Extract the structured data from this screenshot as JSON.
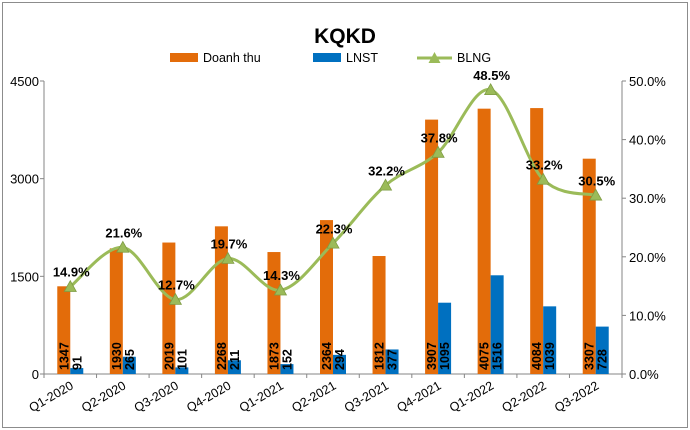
{
  "chart_data": {
    "type": "bar",
    "title": "KQKD",
    "categories": [
      "Q1-2020",
      "Q2-2020",
      "Q3-2020",
      "Q4-2020",
      "Q1-2021",
      "Q2-2021",
      "Q3-2021",
      "Q4-2021",
      "Q1-2022",
      "Q2-2022",
      "Q3-2022"
    ],
    "series": [
      {
        "name": "Doanh thu",
        "type": "bar",
        "axis": "left",
        "color": "#e36c0a",
        "values": [
          1347,
          1930,
          2019,
          2268,
          1873,
          2364,
          1812,
          3907,
          4075,
          4084,
          3307
        ]
      },
      {
        "name": "LNST",
        "type": "bar",
        "axis": "left",
        "color": "#0070c0",
        "values": [
          91,
          265,
          101,
          211,
          152,
          294,
          377,
          1095,
          1516,
          1039,
          728
        ]
      },
      {
        "name": "BLNG",
        "type": "line",
        "axis": "right",
        "color": "#9bbb59",
        "values": [
          14.9,
          21.6,
          12.7,
          19.7,
          14.3,
          22.3,
          32.2,
          37.8,
          48.5,
          33.2,
          30.5
        ],
        "labels": [
          "14.9%",
          "21.6%",
          "12.7%",
          "19.7%",
          "14.3%",
          "22.3%",
          "32.2%",
          "37.8%",
          "48.5%",
          "33.2%",
          "30.5%"
        ]
      }
    ],
    "ylim_left": [
      0,
      4500
    ],
    "yticks_left": [
      "0",
      "1500",
      "3000",
      "4500"
    ],
    "ylim_right": [
      0,
      50
    ],
    "yticks_right": [
      "0.0%",
      "10.0%",
      "20.0%",
      "30.0%",
      "40.0%",
      "50.0%"
    ],
    "legend_position": "top",
    "grid": false
  }
}
